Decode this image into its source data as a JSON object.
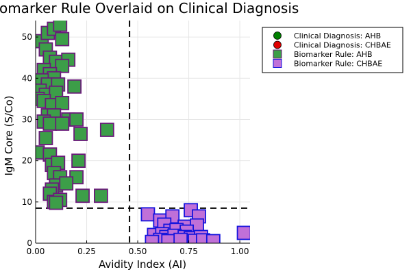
{
  "chart_data": {
    "type": "scatter",
    "title": "Biomarker Rule Overlaid on Clinical Diagnosis",
    "xlabel": "Avidity Index (AI)",
    "ylabel": "IgM Core (S/Co)",
    "xlim": [
      0,
      1.05
    ],
    "ylim": [
      0,
      54
    ],
    "x_ticks": [
      0,
      0.25,
      0.5,
      0.75,
      1.0
    ],
    "x_tick_labels": [
      "0.00",
      "0.25",
      "0.50",
      "0.75",
      "1.00"
    ],
    "y_ticks": [
      0,
      10,
      20,
      30,
      40,
      50
    ],
    "y_tick_labels": [
      "0",
      "10",
      "20",
      "30",
      "40",
      "50"
    ],
    "grid": true,
    "legend_position": "outside-right",
    "thresholds": {
      "x": 0.46,
      "y": 8.5
    },
    "series": [
      {
        "name": "Clinical Diagnosis: AHB",
        "marker": "circle",
        "color": "#008000",
        "show_points": false,
        "points": []
      },
      {
        "name": "Clinical Diagnosis: CHBAE",
        "marker": "circle",
        "color": "#e00000",
        "show_points": false,
        "points": []
      },
      {
        "name": "Biomarker Rule: AHB",
        "marker": "square",
        "color": "#3c9e48",
        "stroke": "#6a1a7a",
        "points": [
          [
            0.03,
            49
          ],
          [
            0.06,
            51
          ],
          [
            0.09,
            52
          ],
          [
            0.12,
            53
          ],
          [
            0.13,
            49.5
          ],
          [
            0.05,
            47
          ],
          [
            0.07,
            45
          ],
          [
            0.1,
            44
          ],
          [
            0.16,
            44.5
          ],
          [
            0.13,
            43
          ],
          [
            0.04,
            42
          ],
          [
            0.07,
            41
          ],
          [
            0.09,
            40
          ],
          [
            0.03,
            39.5
          ],
          [
            0.06,
            38.5
          ],
          [
            0.11,
            38.5
          ],
          [
            0.19,
            38
          ],
          [
            0.02,
            37
          ],
          [
            0.05,
            36
          ],
          [
            0.1,
            36.5
          ],
          [
            0.01,
            35
          ],
          [
            0.04,
            34.5
          ],
          [
            0.08,
            33.5
          ],
          [
            0.13,
            34
          ],
          [
            0.06,
            31
          ],
          [
            0.09,
            31
          ],
          [
            0.16,
            30
          ],
          [
            0.2,
            30
          ],
          [
            0.04,
            29.5
          ],
          [
            0.07,
            29
          ],
          [
            0.13,
            29
          ],
          [
            0.22,
            26.5
          ],
          [
            0.35,
            27.5
          ],
          [
            0.05,
            25.5
          ],
          [
            0.01,
            22
          ],
          [
            0.07,
            21.5
          ],
          [
            0.08,
            19
          ],
          [
            0.11,
            19.5
          ],
          [
            0.21,
            20
          ],
          [
            0.09,
            17
          ],
          [
            0.12,
            16
          ],
          [
            0.2,
            16
          ],
          [
            0.1,
            14
          ],
          [
            0.15,
            14.5
          ],
          [
            0.08,
            13
          ],
          [
            0.07,
            12
          ],
          [
            0.23,
            11.5
          ],
          [
            0.32,
            11.5
          ],
          [
            0.09,
            10
          ],
          [
            0.12,
            10.5
          ],
          [
            0.1,
            9.8
          ]
        ]
      },
      {
        "name": "Biomarker Rule: CHBAE",
        "marker": "square",
        "color": "#c070d8",
        "stroke": "#1515dd",
        "points": [
          [
            0.55,
            7
          ],
          [
            0.76,
            8
          ],
          [
            0.61,
            5.5
          ],
          [
            0.67,
            6.5
          ],
          [
            0.8,
            6.5
          ],
          [
            0.63,
            4.5
          ],
          [
            0.73,
            4
          ],
          [
            0.79,
            4.3
          ],
          [
            0.66,
            3
          ],
          [
            0.69,
            3.2
          ],
          [
            0.74,
            2.8
          ],
          [
            0.58,
            2
          ],
          [
            0.62,
            2.2
          ],
          [
            0.64,
            1.5
          ],
          [
            0.68,
            1.8
          ],
          [
            0.73,
            1.5
          ],
          [
            0.76,
            1.2
          ],
          [
            0.81,
            1.5
          ],
          [
            0.61,
            0.8
          ],
          [
            0.65,
            0.5
          ],
          [
            0.71,
            0.8
          ],
          [
            0.78,
            0.6
          ],
          [
            0.82,
            0.7
          ],
          [
            0.87,
            0.5
          ],
          [
            0.57,
            0.3
          ],
          [
            1.02,
            2.5
          ]
        ]
      }
    ]
  }
}
